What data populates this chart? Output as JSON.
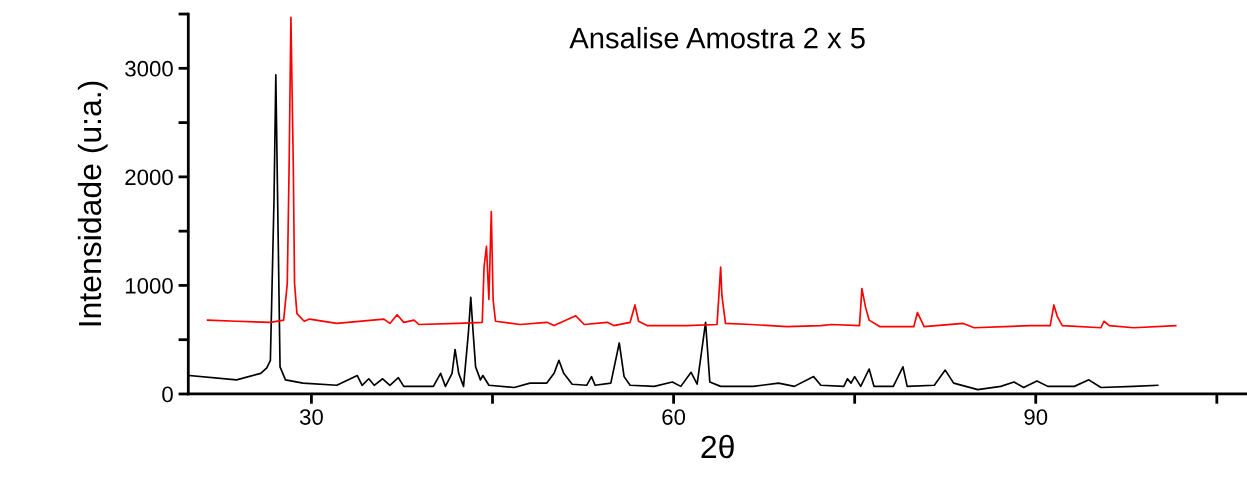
{
  "chart_data": {
    "type": "line",
    "title": "Ansalise Amostra 2 x 5",
    "xlabel": "2θ",
    "ylabel": "Intensidade (u:a.)",
    "xlim": [
      19.8,
      107.5
    ],
    "ylim": [
      0,
      3500
    ],
    "xticks": [
      30,
      {
        "value": 45,
        "label": null
      },
      60,
      {
        "value": 75,
        "label": null
      },
      90,
      {
        "value": 105,
        "label": null
      }
    ],
    "yticks": [
      0,
      {
        "value": 500,
        "label": null
      },
      1000,
      {
        "value": 1500,
        "label": null
      },
      2000,
      {
        "value": 2500,
        "label": null
      },
      3000,
      {
        "value": 3500,
        "label": null
      }
    ],
    "grid": false,
    "marker": "none",
    "line_style": "solid",
    "series": [
      {
        "color": "#000000",
        "x": [
          19.9,
          23.8,
          25.8,
          26.3,
          26.6,
          26.9,
          27.05,
          27.2,
          27.4,
          27.85,
          29.3,
          32.1,
          33.8,
          34.2,
          34.75,
          35.2,
          35.9,
          36.5,
          37.2,
          37.65,
          40.1,
          40.7,
          41.1,
          41.65,
          41.9,
          42.2,
          42.6,
          43.0,
          43.2,
          43.4,
          43.6,
          44.0,
          44.2,
          44.7,
          46.8,
          48.1,
          49.5,
          50.1,
          50.5,
          50.9,
          51.6,
          52.8,
          53.2,
          53.5,
          54.8,
          55.5,
          55.9,
          56.4,
          58.4,
          59.9,
          60.6,
          61.45,
          61.95,
          62.65,
          63.0,
          63.9,
          66.6,
          68.7,
          70.0,
          71.6,
          72.2,
          74.1,
          74.4,
          74.7,
          75.0,
          75.5,
          76.2,
          76.6,
          78.2,
          79.0,
          79.35,
          81.6,
          82.5,
          83.2,
          85.2,
          87.1,
          88.2,
          89.0,
          90.1,
          91.0,
          93.2,
          94.4,
          95.4,
          98.1,
          100.1
        ],
        "values": [
          170,
          130,
          190,
          240,
          310,
          1790,
          2940,
          1790,
          250,
          130,
          100,
          80,
          170,
          80,
          140,
          80,
          140,
          80,
          150,
          70,
          70,
          190,
          70,
          190,
          410,
          190,
          70,
          560,
          890,
          560,
          250,
          130,
          170,
          80,
          60,
          100,
          100,
          190,
          310,
          190,
          90,
          80,
          160,
          80,
          100,
          470,
          160,
          80,
          70,
          110,
          70,
          200,
          90,
          660,
          110,
          70,
          70,
          100,
          70,
          160,
          80,
          70,
          140,
          100,
          160,
          70,
          230,
          70,
          70,
          250,
          70,
          80,
          220,
          100,
          40,
          70,
          110,
          60,
          120,
          70,
          70,
          130,
          60,
          70,
          80
        ]
      },
      {
        "color": "#ff0000",
        "x": [
          21.4,
          23.8,
          26.6,
          27.7,
          28.0,
          28.15,
          28.3,
          28.5,
          28.6,
          28.8,
          29.4,
          29.85,
          32.1,
          36.0,
          36.5,
          37.1,
          37.65,
          38.5,
          38.9,
          42.1,
          44.15,
          44.3,
          44.5,
          44.7,
          44.9,
          45.05,
          45.25,
          47.3,
          49.5,
          50.1,
          51.9,
          52.6,
          54.5,
          55.05,
          56.4,
          56.8,
          57.1,
          57.8,
          61.1,
          63.6,
          63.9,
          64.0,
          64.3,
          66.4,
          69.4,
          72.2,
          73.1,
          75.4,
          75.6,
          75.9,
          76.2,
          77.1,
          79.9,
          80.2,
          80.5,
          80.75,
          84.0,
          84.9,
          89.6,
          91.2,
          91.5,
          91.8,
          92.2,
          95.4,
          95.65,
          96.1,
          98.1,
          101.6
        ],
        "values": [
          680,
          670,
          660,
          680,
          1020,
          2090,
          3470,
          2090,
          1020,
          740,
          670,
          690,
          650,
          690,
          650,
          730,
          660,
          680,
          640,
          650,
          660,
          1170,
          1360,
          870,
          1680,
          870,
          670,
          640,
          660,
          630,
          720,
          640,
          660,
          630,
          660,
          820,
          670,
          630,
          630,
          640,
          1170,
          910,
          650,
          640,
          620,
          630,
          640,
          630,
          970,
          800,
          680,
          620,
          620,
          750,
          680,
          620,
          650,
          610,
          630,
          630,
          820,
          710,
          630,
          610,
          670,
          630,
          610,
          630
        ]
      }
    ]
  }
}
